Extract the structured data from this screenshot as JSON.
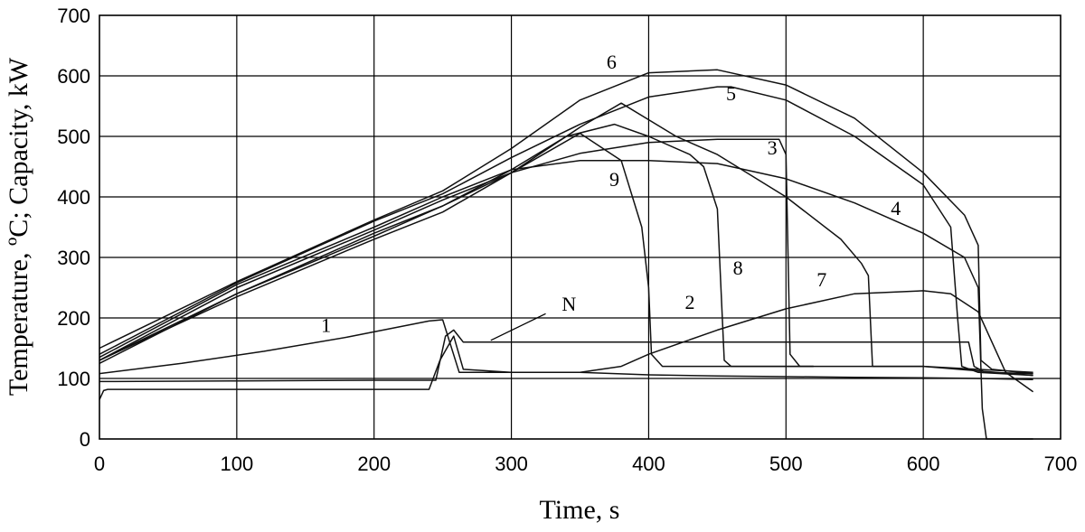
{
  "chart_data": {
    "type": "line",
    "xlabel": "Time, s",
    "ylabel": "Temperature, ºC; Capacity, kW",
    "xlim": [
      0,
      700
    ],
    "ylim": [
      0,
      700
    ],
    "xticks": [
      0,
      100,
      200,
      300,
      400,
      500,
      600,
      700
    ],
    "yticks": [
      0,
      100,
      200,
      300,
      400,
      500,
      600,
      700
    ],
    "grid": true,
    "series": [
      {
        "name": "1",
        "x": [
          0,
          60,
          120,
          180,
          240,
          250,
          262,
          300,
          350,
          400,
          450,
          500,
          550,
          600,
          640,
          680
        ],
        "y": [
          108,
          125,
          145,
          168,
          195,
          197,
          110,
          110,
          110,
          106,
          104,
          103,
          102,
          101,
          100,
          98
        ]
      },
      {
        "name": "2",
        "x": [
          0,
          3,
          6,
          100,
          200,
          240,
          248,
          258,
          265,
          300,
          350,
          380,
          400,
          450,
          500,
          550,
          600,
          620,
          640,
          660,
          680
        ],
        "y": [
          65,
          80,
          82,
          82,
          82,
          82,
          130,
          170,
          115,
          110,
          110,
          120,
          140,
          180,
          215,
          240,
          245,
          240,
          210,
          110,
          78
        ]
      },
      {
        "name": "N",
        "x": [
          0,
          100,
          200,
          245,
          252,
          258,
          265,
          300,
          400,
          500,
          600,
          633,
          637,
          645,
          680
        ],
        "y": [
          95,
          96,
          97,
          97,
          170,
          180,
          160,
          160,
          160,
          160,
          160,
          160,
          120,
          110,
          108
        ]
      },
      {
        "name": "3",
        "x": [
          0,
          100,
          200,
          250,
          300,
          350,
          400,
          450,
          495,
          500,
          503,
          510,
          550,
          600,
          680
        ],
        "y": [
          130,
          250,
          345,
          395,
          440,
          472,
          490,
          495,
          495,
          470,
          140,
          120,
          120,
          120,
          105
        ]
      },
      {
        "name": "4",
        "x": [
          0,
          100,
          200,
          250,
          300,
          350,
          400,
          450,
          500,
          550,
          600,
          630,
          640,
          643,
          646,
          680
        ],
        "y": [
          135,
          255,
          350,
          400,
          445,
          460,
          460,
          455,
          430,
          390,
          340,
          300,
          250,
          50,
          0,
          0
        ]
      },
      {
        "name": "5",
        "x": [
          0,
          100,
          200,
          250,
          300,
          350,
          400,
          450,
          460,
          500,
          550,
          600,
          620,
          625,
          628,
          640,
          680
        ],
        "y": [
          140,
          258,
          360,
          405,
          465,
          520,
          565,
          582,
          582,
          560,
          500,
          420,
          350,
          200,
          120,
          110,
          105
        ]
      },
      {
        "name": "6",
        "x": [
          0,
          100,
          200,
          250,
          300,
          350,
          400,
          450,
          500,
          550,
          600,
          630,
          640,
          642,
          650,
          680
        ],
        "y": [
          150,
          260,
          362,
          410,
          480,
          560,
          605,
          610,
          585,
          530,
          440,
          370,
          320,
          130,
          115,
          108
        ]
      },
      {
        "name": "7",
        "x": [
          0,
          100,
          200,
          250,
          300,
          350,
          380,
          420,
          450,
          500,
          540,
          555,
          560,
          563,
          580,
          600,
          680
        ],
        "y": [
          130,
          235,
          330,
          375,
          440,
          515,
          555,
          500,
          470,
          400,
          330,
          290,
          270,
          120,
          120,
          120,
          110
        ]
      },
      {
        "name": "8",
        "x": [
          0,
          100,
          200,
          250,
          300,
          340,
          375,
          400,
          430,
          440,
          450,
          455,
          460,
          500,
          520
        ],
        "y": [
          130,
          240,
          340,
          385,
          445,
          500,
          520,
          500,
          470,
          450,
          380,
          130,
          120,
          120,
          120
        ]
      },
      {
        "name": "9",
        "x": [
          0,
          100,
          200,
          250,
          300,
          350,
          380,
          395,
          400,
          402,
          410,
          450,
          500,
          520
        ],
        "y": [
          125,
          240,
          335,
          385,
          440,
          505,
          460,
          350,
          250,
          140,
          120,
          120,
          120,
          120
        ]
      }
    ],
    "curve_labels": [
      {
        "text": "6",
        "x": 373,
        "y": 612
      },
      {
        "text": "5",
        "x": 460,
        "y": 560
      },
      {
        "text": "3",
        "x": 490,
        "y": 470
      },
      {
        "text": "9",
        "x": 375,
        "y": 418
      },
      {
        "text": "4",
        "x": 580,
        "y": 370
      },
      {
        "text": "8",
        "x": 465,
        "y": 272
      },
      {
        "text": "7",
        "x": 526,
        "y": 252
      },
      {
        "text": "2",
        "x": 430,
        "y": 215
      },
      {
        "text": "1",
        "x": 165,
        "y": 177
      },
      {
        "text": "N",
        "x": 342,
        "y": 212
      }
    ],
    "n_pointer": {
      "from": [
        325,
        207
      ],
      "to": [
        285,
        163
      ]
    }
  }
}
